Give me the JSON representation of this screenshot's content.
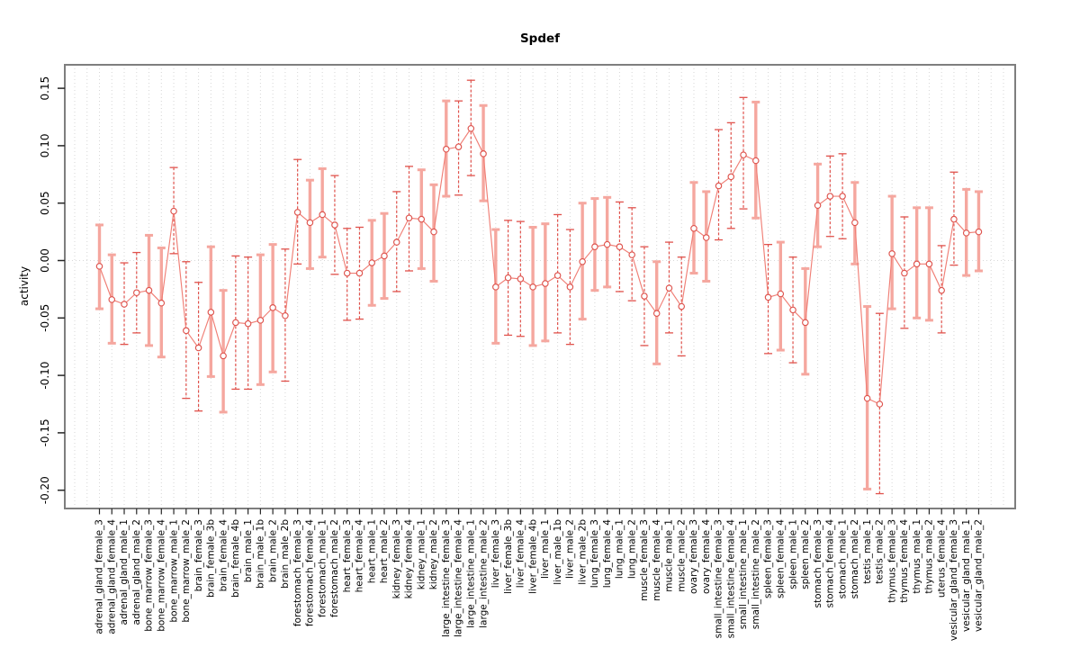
{
  "colors": {
    "point_stroke": "#de544e",
    "series_line": "#f07f76",
    "bar_thick": "#f5a79f",
    "bar_dashed": "#e0524c",
    "grid": "#d6d6d6",
    "zero_line": "#d8d8d8",
    "frame": "#7e7e7e",
    "tick": "#262626",
    "text": "#000000"
  },
  "chart_data": {
    "type": "scatter",
    "title": "Spdef",
    "xlabel": "",
    "ylabel": "activity",
    "ylim": [
      -0.22,
      0.17
    ],
    "ytick_values": [
      0.15,
      0.1,
      0.05,
      0.0,
      -0.05,
      -0.1,
      -0.15,
      -0.2
    ],
    "ytick_labels": [
      "0.15",
      "0.10",
      "0.05",
      "0.00",
      "-0.05",
      "-0.10",
      "-0.15",
      "-0.20"
    ],
    "grid": "vertical dotted per category",
    "zero_line": 0,
    "legend_position": "none",
    "series_name": "activity",
    "points": [
      {
        "label": "adrenal_gland_female_3",
        "value": -0.005,
        "lo": -0.042,
        "hi": 0.031,
        "bar": "thick"
      },
      {
        "label": "adrenal_gland_female_4",
        "value": -0.034,
        "lo": -0.072,
        "hi": 0.005,
        "bar": "thick"
      },
      {
        "label": "adrenal_gland_male_1",
        "value": -0.038,
        "lo": -0.073,
        "hi": -0.002,
        "bar": "dashed"
      },
      {
        "label": "adrenal_gland_male_2",
        "value": -0.028,
        "lo": -0.063,
        "hi": 0.007,
        "bar": "dashed"
      },
      {
        "label": "bone_marrow_female_3",
        "value": -0.026,
        "lo": -0.074,
        "hi": 0.022,
        "bar": "thick"
      },
      {
        "label": "bone_marrow_female_4",
        "value": -0.037,
        "lo": -0.084,
        "hi": 0.011,
        "bar": "thick"
      },
      {
        "label": "bone_marrow_male_1",
        "value": 0.043,
        "lo": 0.006,
        "hi": 0.081,
        "bar": "dashed"
      },
      {
        "label": "bone_marrow_male_2",
        "value": -0.061,
        "lo": -0.12,
        "hi": -0.001,
        "bar": "dashed"
      },
      {
        "label": "brain_female_3",
        "value": -0.076,
        "lo": -0.131,
        "hi": -0.019,
        "bar": "dashed"
      },
      {
        "label": "brain_female_3b",
        "value": -0.045,
        "lo": -0.101,
        "hi": 0.012,
        "bar": "thick"
      },
      {
        "label": "brain_female_4",
        "value": -0.083,
        "lo": -0.132,
        "hi": -0.026,
        "bar": "thick"
      },
      {
        "label": "brain_female_4b",
        "value": -0.054,
        "lo": -0.112,
        "hi": 0.004,
        "bar": "dashed"
      },
      {
        "label": "brain_male_1",
        "value": -0.055,
        "lo": -0.112,
        "hi": 0.003,
        "bar": "dashed"
      },
      {
        "label": "brain_male_1b",
        "value": -0.052,
        "lo": -0.108,
        "hi": 0.005,
        "bar": "thick"
      },
      {
        "label": "brain_male_2",
        "value": -0.041,
        "lo": -0.097,
        "hi": 0.014,
        "bar": "thick"
      },
      {
        "label": "brain_male_2b",
        "value": -0.048,
        "lo": -0.105,
        "hi": 0.01,
        "bar": "dashed"
      },
      {
        "label": "forestomach_female_3",
        "value": 0.042,
        "lo": -0.003,
        "hi": 0.088,
        "bar": "dashed"
      },
      {
        "label": "forestomach_female_4",
        "value": 0.033,
        "lo": -0.007,
        "hi": 0.07,
        "bar": "thick"
      },
      {
        "label": "forestomach_male_1",
        "value": 0.04,
        "lo": 0.003,
        "hi": 0.08,
        "bar": "thick"
      },
      {
        "label": "forestomach_male_2",
        "value": 0.031,
        "lo": -0.012,
        "hi": 0.074,
        "bar": "dashed"
      },
      {
        "label": "heart_female_3",
        "value": -0.011,
        "lo": -0.052,
        "hi": 0.028,
        "bar": "dashed"
      },
      {
        "label": "heart_female_4",
        "value": -0.011,
        "lo": -0.051,
        "hi": 0.029,
        "bar": "dashed"
      },
      {
        "label": "heart_male_1",
        "value": -0.002,
        "lo": -0.039,
        "hi": 0.035,
        "bar": "thick"
      },
      {
        "label": "heart_male_2",
        "value": 0.004,
        "lo": -0.033,
        "hi": 0.041,
        "bar": "thick"
      },
      {
        "label": "kidney_female_3",
        "value": 0.016,
        "lo": -0.027,
        "hi": 0.06,
        "bar": "dashed"
      },
      {
        "label": "kidney_female_4",
        "value": 0.037,
        "lo": -0.009,
        "hi": 0.082,
        "bar": "dashed"
      },
      {
        "label": "kidney_male_1",
        "value": 0.036,
        "lo": -0.007,
        "hi": 0.079,
        "bar": "thick"
      },
      {
        "label": "kidney_male_2",
        "value": 0.025,
        "lo": -0.018,
        "hi": 0.066,
        "bar": "thick"
      },
      {
        "label": "large_intestine_female_3",
        "value": 0.097,
        "lo": 0.056,
        "hi": 0.139,
        "bar": "thick"
      },
      {
        "label": "large_intestine_female_4",
        "value": 0.099,
        "lo": 0.057,
        "hi": 0.139,
        "bar": "dashed"
      },
      {
        "label": "large_intestine_male_1",
        "value": 0.115,
        "lo": 0.074,
        "hi": 0.157,
        "bar": "dashed"
      },
      {
        "label": "large_intestine_male_2",
        "value": 0.093,
        "lo": 0.052,
        "hi": 0.135,
        "bar": "thick"
      },
      {
        "label": "liver_female_3",
        "value": -0.023,
        "lo": -0.072,
        "hi": 0.027,
        "bar": "thick"
      },
      {
        "label": "liver_female_3b",
        "value": -0.015,
        "lo": -0.065,
        "hi": 0.035,
        "bar": "dashed"
      },
      {
        "label": "liver_female_4",
        "value": -0.016,
        "lo": -0.066,
        "hi": 0.034,
        "bar": "dashed"
      },
      {
        "label": "liver_female_4b",
        "value": -0.023,
        "lo": -0.074,
        "hi": 0.029,
        "bar": "thick"
      },
      {
        "label": "liver_male_1",
        "value": -0.02,
        "lo": -0.07,
        "hi": 0.032,
        "bar": "thick"
      },
      {
        "label": "liver_male_1b",
        "value": -0.013,
        "lo": -0.063,
        "hi": 0.04,
        "bar": "dashed"
      },
      {
        "label": "liver_male_2",
        "value": -0.023,
        "lo": -0.073,
        "hi": 0.027,
        "bar": "dashed"
      },
      {
        "label": "liver_male_2b",
        "value": -0.001,
        "lo": -0.051,
        "hi": 0.05,
        "bar": "thick"
      },
      {
        "label": "lung_female_3",
        "value": 0.012,
        "lo": -0.026,
        "hi": 0.054,
        "bar": "thick"
      },
      {
        "label": "lung_female_4",
        "value": 0.014,
        "lo": -0.023,
        "hi": 0.055,
        "bar": "thick"
      },
      {
        "label": "lung_male_1",
        "value": 0.012,
        "lo": -0.027,
        "hi": 0.051,
        "bar": "dashed"
      },
      {
        "label": "lung_male_2",
        "value": 0.005,
        "lo": -0.035,
        "hi": 0.046,
        "bar": "dashed"
      },
      {
        "label": "muscle_female_3",
        "value": -0.031,
        "lo": -0.074,
        "hi": 0.012,
        "bar": "dashed"
      },
      {
        "label": "muscle_female_4",
        "value": -0.046,
        "lo": -0.09,
        "hi": -0.001,
        "bar": "thick"
      },
      {
        "label": "muscle_male_1",
        "value": -0.024,
        "lo": -0.063,
        "hi": 0.016,
        "bar": "dashed"
      },
      {
        "label": "muscle_male_2",
        "value": -0.04,
        "lo": -0.083,
        "hi": 0.003,
        "bar": "dashed"
      },
      {
        "label": "ovary_female_3",
        "value": 0.028,
        "lo": -0.011,
        "hi": 0.068,
        "bar": "thick"
      },
      {
        "label": "ovary_female_4",
        "value": 0.02,
        "lo": -0.018,
        "hi": 0.06,
        "bar": "thick"
      },
      {
        "label": "small_intestine_female_3",
        "value": 0.065,
        "lo": 0.018,
        "hi": 0.114,
        "bar": "dashed"
      },
      {
        "label": "small_intestine_female_4",
        "value": 0.073,
        "lo": 0.028,
        "hi": 0.12,
        "bar": "dashed"
      },
      {
        "label": "small_intestine_male_1",
        "value": 0.092,
        "lo": 0.045,
        "hi": 0.142,
        "bar": "dashed"
      },
      {
        "label": "small_intestine_male_2",
        "value": 0.087,
        "lo": 0.037,
        "hi": 0.138,
        "bar": "thick"
      },
      {
        "label": "spleen_female_3",
        "value": -0.032,
        "lo": -0.081,
        "hi": 0.014,
        "bar": "dashed"
      },
      {
        "label": "spleen_female_4",
        "value": -0.029,
        "lo": -0.078,
        "hi": 0.016,
        "bar": "thick"
      },
      {
        "label": "spleen_male_1",
        "value": -0.043,
        "lo": -0.089,
        "hi": 0.003,
        "bar": "dashed"
      },
      {
        "label": "spleen_male_2",
        "value": -0.054,
        "lo": -0.099,
        "hi": -0.007,
        "bar": "thick"
      },
      {
        "label": "stomach_female_3",
        "value": 0.048,
        "lo": 0.012,
        "hi": 0.084,
        "bar": "thick"
      },
      {
        "label": "stomach_female_4",
        "value": 0.056,
        "lo": 0.021,
        "hi": 0.091,
        "bar": "dashed"
      },
      {
        "label": "stomach_male_1",
        "value": 0.056,
        "lo": 0.019,
        "hi": 0.093,
        "bar": "dashed"
      },
      {
        "label": "stomach_male_2",
        "value": 0.033,
        "lo": -0.003,
        "hi": 0.068,
        "bar": "thick"
      },
      {
        "label": "testis_male_1",
        "value": -0.12,
        "lo": -0.199,
        "hi": -0.04,
        "bar": "thick"
      },
      {
        "label": "testis_male_2",
        "value": -0.125,
        "lo": -0.203,
        "hi": -0.046,
        "bar": "dashed"
      },
      {
        "label": "thymus_female_3",
        "value": 0.006,
        "lo": -0.042,
        "hi": 0.056,
        "bar": "thick"
      },
      {
        "label": "thymus_female_4",
        "value": -0.011,
        "lo": -0.059,
        "hi": 0.038,
        "bar": "dashed"
      },
      {
        "label": "thymus_male_1",
        "value": -0.003,
        "lo": -0.05,
        "hi": 0.046,
        "bar": "thick"
      },
      {
        "label": "thymus_male_2",
        "value": -0.003,
        "lo": -0.052,
        "hi": 0.046,
        "bar": "thick"
      },
      {
        "label": "uterus_female_4",
        "value": -0.026,
        "lo": -0.063,
        "hi": 0.013,
        "bar": "dashed"
      },
      {
        "label": "vesicular_gland_female_3",
        "value": 0.036,
        "lo": -0.004,
        "hi": 0.077,
        "bar": "dashed"
      },
      {
        "label": "vesicular_gland_male_1",
        "value": 0.024,
        "lo": -0.013,
        "hi": 0.062,
        "bar": "thick"
      },
      {
        "label": "vesicular_gland_male_2",
        "value": 0.025,
        "lo": -0.009,
        "hi": 0.06,
        "bar": "thick"
      }
    ]
  }
}
